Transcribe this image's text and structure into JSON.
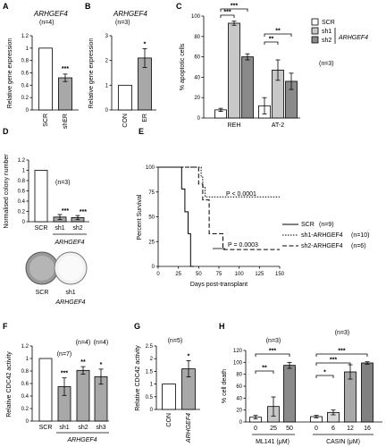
{
  "chart_data": [
    {
      "panel": "A",
      "type": "bar",
      "title": "ARHGEF4",
      "note": "(n=4)",
      "ylabel": "Relative gene expression",
      "ylim": [
        0,
        1.2
      ],
      "yticks": [
        "0",
        "0.2",
        "0.4",
        "0.6",
        "0.8",
        "1",
        "1.2"
      ],
      "categories": [
        "SCR",
        "shER"
      ],
      "values": [
        1.0,
        0.52
      ],
      "errors": [
        0,
        0.06
      ],
      "colors": [
        "#ffffff",
        "#a8a8a8"
      ],
      "sig": [
        "",
        "***"
      ]
    },
    {
      "panel": "B",
      "type": "bar",
      "title": "ARHGEF4",
      "note": "(n=3)",
      "ylabel": "Relative gene expression",
      "ylim": [
        0,
        3
      ],
      "yticks": [
        "0",
        "1",
        "2",
        "3"
      ],
      "categories": [
        "CON",
        "ER"
      ],
      "values": [
        1.0,
        2.1
      ],
      "errors": [
        0,
        0.38
      ],
      "colors": [
        "#ffffff",
        "#a8a8a8"
      ],
      "sig": [
        "",
        "*"
      ]
    },
    {
      "panel": "C",
      "type": "bar",
      "ylabel": "% apoptotic cells",
      "ylim": [
        0,
        100
      ],
      "yticks": [
        "0",
        "20",
        "40",
        "60",
        "80",
        "100"
      ],
      "categories": [
        "REH",
        "AT-2"
      ],
      "series": [
        {
          "name": "SCR",
          "values": [
            8,
            12
          ],
          "errors": [
            1.5,
            8
          ],
          "color": "#ffffff"
        },
        {
          "name": "sh1",
          "values": [
            93,
            47
          ],
          "errors": [
            2,
            10
          ],
          "color": "#c8c8c8"
        },
        {
          "name": "sh2",
          "values": [
            60,
            36
          ],
          "errors": [
            3,
            8
          ],
          "color": "#8a8a8a"
        }
      ],
      "legend_group": "ARHGEF4",
      "note": "(n=3)",
      "brackets": [
        {
          "label": "***",
          "from": [
            0,
            0
          ],
          "to": [
            0,
            1
          ]
        },
        {
          "label": "***",
          "from": [
            0,
            0
          ],
          "to": [
            0,
            2
          ]
        },
        {
          "label": "**",
          "from": [
            1,
            0
          ],
          "to": [
            1,
            1
          ]
        },
        {
          "label": "**",
          "from": [
            1,
            0
          ],
          "to": [
            1,
            2
          ]
        }
      ]
    },
    {
      "panel": "D",
      "type": "bar",
      "ylabel": "Normalised colony number",
      "ylim": [
        0,
        1.2
      ],
      "yticks": [
        "0",
        "0.2",
        "0.4",
        "0.6",
        "0.8",
        "1",
        "1.2"
      ],
      "categories": [
        "SCR",
        "sh1",
        "sh2"
      ],
      "values": [
        1.0,
        0.09,
        0.08
      ],
      "errors": [
        0,
        0.05,
        0.04
      ],
      "colors": [
        "#ffffff",
        "#a8a8a8",
        "#a8a8a8"
      ],
      "sig": [
        "",
        "***",
        "***"
      ],
      "note": "(n=3)",
      "group_label": "ARHGEF4",
      "photo_labels": [
        "SCR",
        "sh1",
        "ARHGEF4"
      ]
    },
    {
      "panel": "E",
      "type": "line",
      "xlabel": "Days post-transplant",
      "ylabel": "Percent Survival",
      "xlim": [
        0,
        150
      ],
      "ylim": [
        0,
        100
      ],
      "xticks": [
        "0",
        "25",
        "50",
        "75",
        "100",
        "125",
        "150"
      ],
      "yticks": [
        "0",
        "25",
        "50",
        "75",
        "100"
      ],
      "series": [
        {
          "name": "SCR",
          "n": "(n=9)",
          "style": "solid",
          "x": [
            0,
            29,
            29,
            33,
            33,
            37,
            37,
            40,
            40,
            44
          ],
          "y": [
            100,
            100,
            78,
            78,
            55,
            55,
            33,
            33,
            0,
            0
          ]
        },
        {
          "name": "sh1-ARHGEF4",
          "n": "(n=10)",
          "style": "dotted",
          "x": [
            0,
            53,
            53,
            55,
            55,
            58,
            58,
            150
          ],
          "y": [
            100,
            100,
            90,
            90,
            80,
            80,
            70,
            70
          ]
        },
        {
          "name": "sh2-ARHGEF4",
          "n": "(n=6)",
          "style": "dashed",
          "x": [
            0,
            50,
            50,
            55,
            55,
            63,
            63,
            80,
            80,
            150
          ],
          "y": [
            100,
            100,
            83,
            83,
            67,
            67,
            33,
            33,
            17,
            17
          ]
        }
      ],
      "annotations": [
        "P < 0.0001",
        "P = 0.0003"
      ]
    },
    {
      "panel": "F",
      "type": "bar",
      "ylabel": "Relative CDC42 activity",
      "ylim": [
        0,
        1.2
      ],
      "yticks": [
        "0",
        "0.2",
        "0.4",
        "0.6",
        "0.8",
        "1",
        "1.2"
      ],
      "categories": [
        "SCR",
        "sh1",
        "sh2",
        "sh3"
      ],
      "values": [
        1.0,
        0.55,
        0.81,
        0.71
      ],
      "errors": [
        0,
        0.14,
        0.06,
        0.12
      ],
      "colors": [
        "#ffffff",
        "#a8a8a8",
        "#a8a8a8",
        "#a8a8a8"
      ],
      "sig": [
        "",
        "***",
        "**",
        "*"
      ],
      "notes": [
        "",
        "(n=7)",
        "(n=4)",
        "(n=4)"
      ],
      "group_label": "ARHGEF4"
    },
    {
      "panel": "G",
      "type": "bar",
      "ylabel": "Relative CDC42 activity",
      "ylim": [
        0,
        2.5
      ],
      "yticks": [
        "0",
        "0.5",
        "1",
        "1.5",
        "2",
        "2.5"
      ],
      "categories": [
        "CON",
        "ARHGEF4"
      ],
      "values": [
        1.0,
        1.6
      ],
      "errors": [
        0,
        0.32
      ],
      "colors": [
        "#ffffff",
        "#a8a8a8"
      ],
      "sig": [
        "",
        "*"
      ],
      "note": "(n=5)"
    },
    {
      "panel": "H",
      "type": "bar",
      "ylabel": "% cell death",
      "ylim": [
        0,
        120
      ],
      "yticks": [
        "0",
        "20",
        "40",
        "60",
        "80",
        "100",
        "120"
      ],
      "groups": [
        {
          "label": "ML141 (μM)",
          "note": "(n=3)",
          "categories": [
            "0",
            "25",
            "50"
          ],
          "values": [
            8,
            26,
            95
          ],
          "errors": [
            3,
            16,
            5
          ],
          "colors": [
            "#ffffff",
            "#c8c8c8",
            "#8a8a8a"
          ],
          "brackets": [
            {
              "label": "**",
              "from": 0,
              "to": 1
            },
            {
              "label": "***",
              "from": 0,
              "to": 2
            }
          ]
        },
        {
          "label": "CASIN (μM)",
          "note": "(n=3)",
          "categories": [
            "0",
            "6",
            "12",
            "16"
          ],
          "values": [
            9,
            16,
            84,
            99
          ],
          "errors": [
            2,
            4,
            12,
            2
          ],
          "colors": [
            "#ffffff",
            "#d8d8d8",
            "#a8a8a8",
            "#808080"
          ],
          "brackets": [
            {
              "label": "*",
              "from": 0,
              "to": 1
            },
            {
              "label": "***",
              "from": 0,
              "to": 2
            },
            {
              "label": "***",
              "from": 0,
              "to": 3
            }
          ]
        }
      ]
    }
  ]
}
